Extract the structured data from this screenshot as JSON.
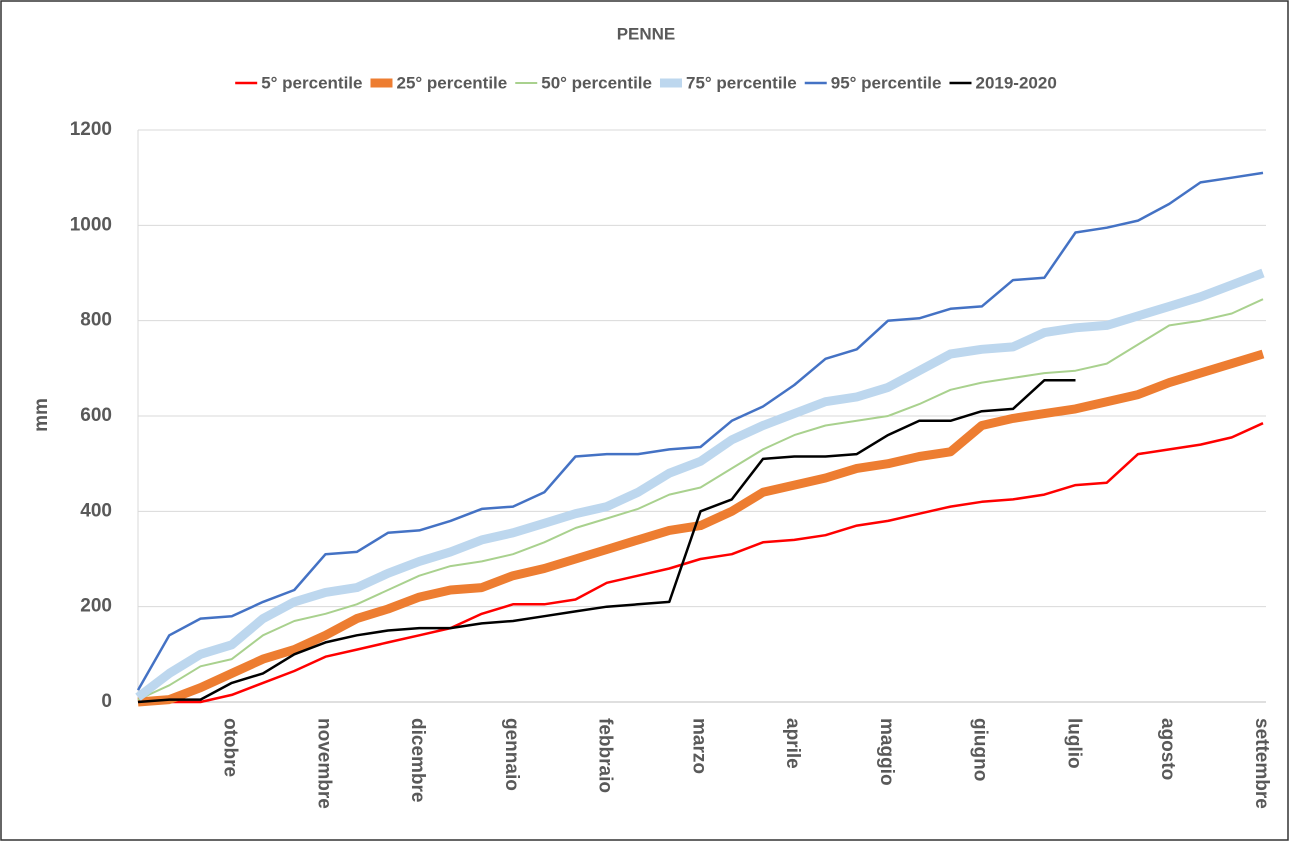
{
  "chart_data": {
    "type": "line",
    "title": "PENNE",
    "y_label": "mm",
    "categories": [
      null,
      null,
      null,
      "otobre",
      null,
      null,
      "novembre",
      null,
      null,
      "dicembre",
      null,
      null,
      "gennaio",
      null,
      null,
      "febbraio",
      null,
      null,
      "marzo",
      null,
      null,
      "aprile",
      null,
      null,
      "maggio",
      null,
      null,
      "giugno",
      null,
      null,
      "luglio",
      null,
      null,
      "agosto",
      null,
      null,
      "settembre"
    ],
    "ylim": [
      0,
      1200
    ],
    "yticks": [
      0,
      200,
      400,
      600,
      800,
      1000,
      1200
    ],
    "grid": true,
    "legend": "top",
    "series": [
      {
        "name": "5° percentile",
        "color": "#ff0000",
        "line_width": 2.5,
        "values": [
          0,
          0,
          0,
          15,
          40,
          65,
          95,
          110,
          125,
          140,
          155,
          185,
          205,
          205,
          215,
          250,
          265,
          280,
          300,
          310,
          335,
          340,
          350,
          370,
          380,
          395,
          410,
          420,
          425,
          435,
          455,
          460,
          520,
          530,
          540,
          555,
          585
        ]
      },
      {
        "name": "25° percentile",
        "color": "#ed7d31",
        "line_width": 9,
        "values": [
          0,
          5,
          30,
          60,
          90,
          110,
          140,
          175,
          195,
          220,
          235,
          240,
          265,
          280,
          300,
          320,
          340,
          360,
          370,
          400,
          440,
          455,
          470,
          490,
          500,
          515,
          525,
          580,
          595,
          605,
          615,
          630,
          645,
          670,
          690,
          710,
          730
        ]
      },
      {
        "name": "50° percentile",
        "color": "#a9d18e",
        "line_width": 2,
        "values": [
          5,
          35,
          75,
          90,
          140,
          170,
          185,
          205,
          235,
          265,
          285,
          295,
          310,
          335,
          365,
          385,
          405,
          435,
          450,
          490,
          530,
          560,
          580,
          590,
          600,
          625,
          655,
          670,
          680,
          690,
          695,
          710,
          750,
          790,
          800,
          815,
          845
        ]
      },
      {
        "name": "75° percentile",
        "color": "#bdd7ee",
        "line_width": 9,
        "values": [
          10,
          60,
          100,
          120,
          175,
          210,
          230,
          240,
          270,
          295,
          315,
          340,
          355,
          375,
          395,
          410,
          440,
          480,
          505,
          550,
          580,
          605,
          630,
          640,
          660,
          695,
          730,
          740,
          745,
          775,
          785,
          790,
          810,
          830,
          850,
          875,
          900
        ]
      },
      {
        "name": "95° percentile",
        "color": "#4472c4",
        "line_width": 2.5,
        "values": [
          25,
          140,
          175,
          180,
          210,
          235,
          310,
          315,
          355,
          360,
          380,
          405,
          410,
          440,
          515,
          520,
          520,
          530,
          535,
          590,
          620,
          665,
          720,
          740,
          800,
          805,
          825,
          830,
          885,
          890,
          985,
          995,
          1010,
          1045,
          1090,
          1100,
          1110
        ]
      },
      {
        "name": "2019-2020",
        "color": "#000000",
        "line_width": 2.5,
        "values": [
          0,
          5,
          5,
          40,
          60,
          100,
          125,
          140,
          150,
          155,
          155,
          165,
          170,
          180,
          190,
          200,
          205,
          210,
          400,
          425,
          510,
          515,
          515,
          520,
          560,
          590,
          590,
          610,
          615,
          675,
          675,
          null,
          null,
          null,
          null,
          null,
          null
        ]
      }
    ]
  }
}
